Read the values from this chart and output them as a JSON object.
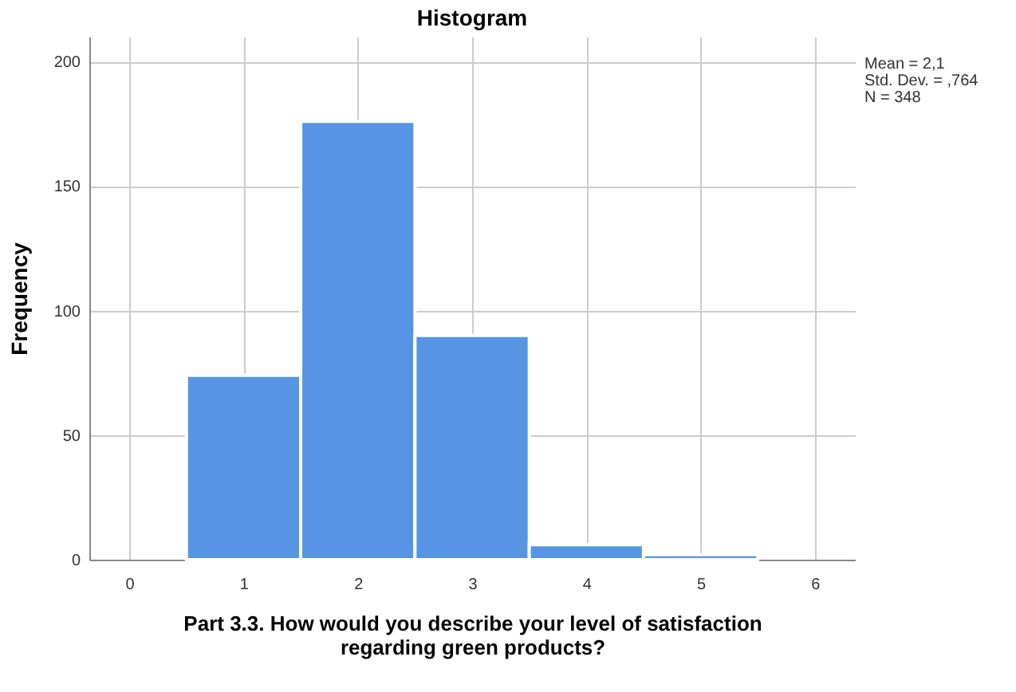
{
  "chart_data": {
    "type": "histogram",
    "title": "Histogram",
    "xlabel": "Part 3.3. How would you describe your level of satisfaction regarding green products?",
    "ylabel": "Frequency",
    "bins": [
      0.5,
      1.5,
      2.5,
      3.5,
      4.5,
      5.5
    ],
    "values": [
      74,
      176,
      90,
      6,
      2
    ],
    "color": "#5595e3",
    "xlim": [
      -0.35,
      6.35
    ],
    "xticks": [
      0,
      1,
      2,
      3,
      4,
      5,
      6
    ],
    "ylim": [
      0,
      210
    ],
    "yticks": [
      0,
      50,
      100,
      150,
      200
    ],
    "grid": true,
    "annotations": [
      "Mean = 2,1",
      "Std. Dev. = ,764",
      "N = 348"
    ]
  }
}
